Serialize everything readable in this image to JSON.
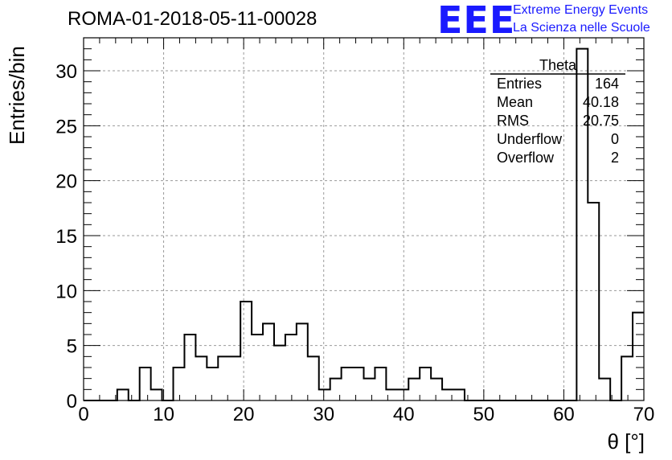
{
  "title": "ROMA-01-2018-05-11-00028",
  "logo": {
    "mark": "EEE",
    "line1": "Extreme Energy Events",
    "line2": "La Scienza nelle Scuole",
    "color": "#1a1aff"
  },
  "chart_data": {
    "type": "bar",
    "title": "ROMA-01-2018-05-11-00028",
    "xlabel": "θ [°]",
    "ylabel": "Entries/bin",
    "xlim": [
      0,
      70
    ],
    "ylim": [
      0,
      33
    ],
    "grid": true,
    "x_ticks": [
      0,
      10,
      20,
      30,
      40,
      50,
      60,
      70
    ],
    "y_ticks": [
      0,
      5,
      10,
      15,
      20,
      25,
      30
    ],
    "bin_width": 1.4,
    "bin_edges_start": 0,
    "values": [
      0,
      0,
      0,
      1,
      0,
      3,
      1,
      0,
      3,
      6,
      4,
      3,
      4,
      4,
      9,
      6,
      7,
      5,
      6,
      7,
      4,
      1,
      2,
      3,
      3,
      2,
      3,
      1,
      1,
      2,
      3,
      2,
      1,
      1,
      0,
      0,
      0,
      0,
      0,
      0,
      0,
      0,
      0,
      0,
      32,
      18,
      2,
      0,
      4,
      8
    ],
    "stats": {
      "name": "Theta",
      "rows": [
        {
          "label": "Entries",
          "value": "164"
        },
        {
          "label": "Mean",
          "value": "40.18"
        },
        {
          "label": "RMS",
          "value": "20.75"
        },
        {
          "label": "Underflow",
          "value": "0"
        },
        {
          "label": "Overflow",
          "value": "2"
        }
      ]
    }
  }
}
